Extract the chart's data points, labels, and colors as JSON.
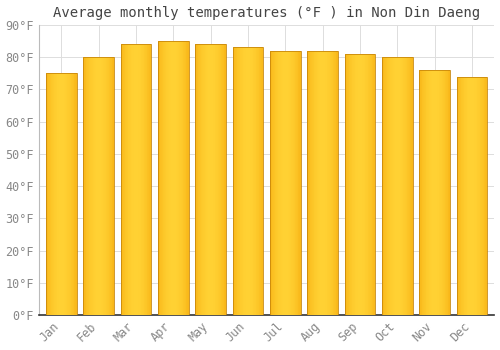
{
  "title": "Average monthly temperatures (°F ) in Non Din Daeng",
  "months": [
    "Jan",
    "Feb",
    "Mar",
    "Apr",
    "May",
    "Jun",
    "Jul",
    "Aug",
    "Sep",
    "Oct",
    "Nov",
    "Dec"
  ],
  "values": [
    75,
    80,
    84,
    85,
    84,
    83,
    82,
    82,
    81,
    80,
    76,
    74
  ],
  "bar_color_center": "#FFCC44",
  "bar_color_edge": "#F5A800",
  "bar_edge_color": "#C8870A",
  "background_color": "#FFFFFF",
  "grid_color": "#DDDDDD",
  "text_color": "#888888",
  "title_color": "#444444",
  "ylim": [
    0,
    90
  ],
  "yticks": [
    0,
    10,
    20,
    30,
    40,
    50,
    60,
    70,
    80,
    90
  ],
  "title_fontsize": 10,
  "tick_fontsize": 8.5,
  "bar_width": 0.82
}
